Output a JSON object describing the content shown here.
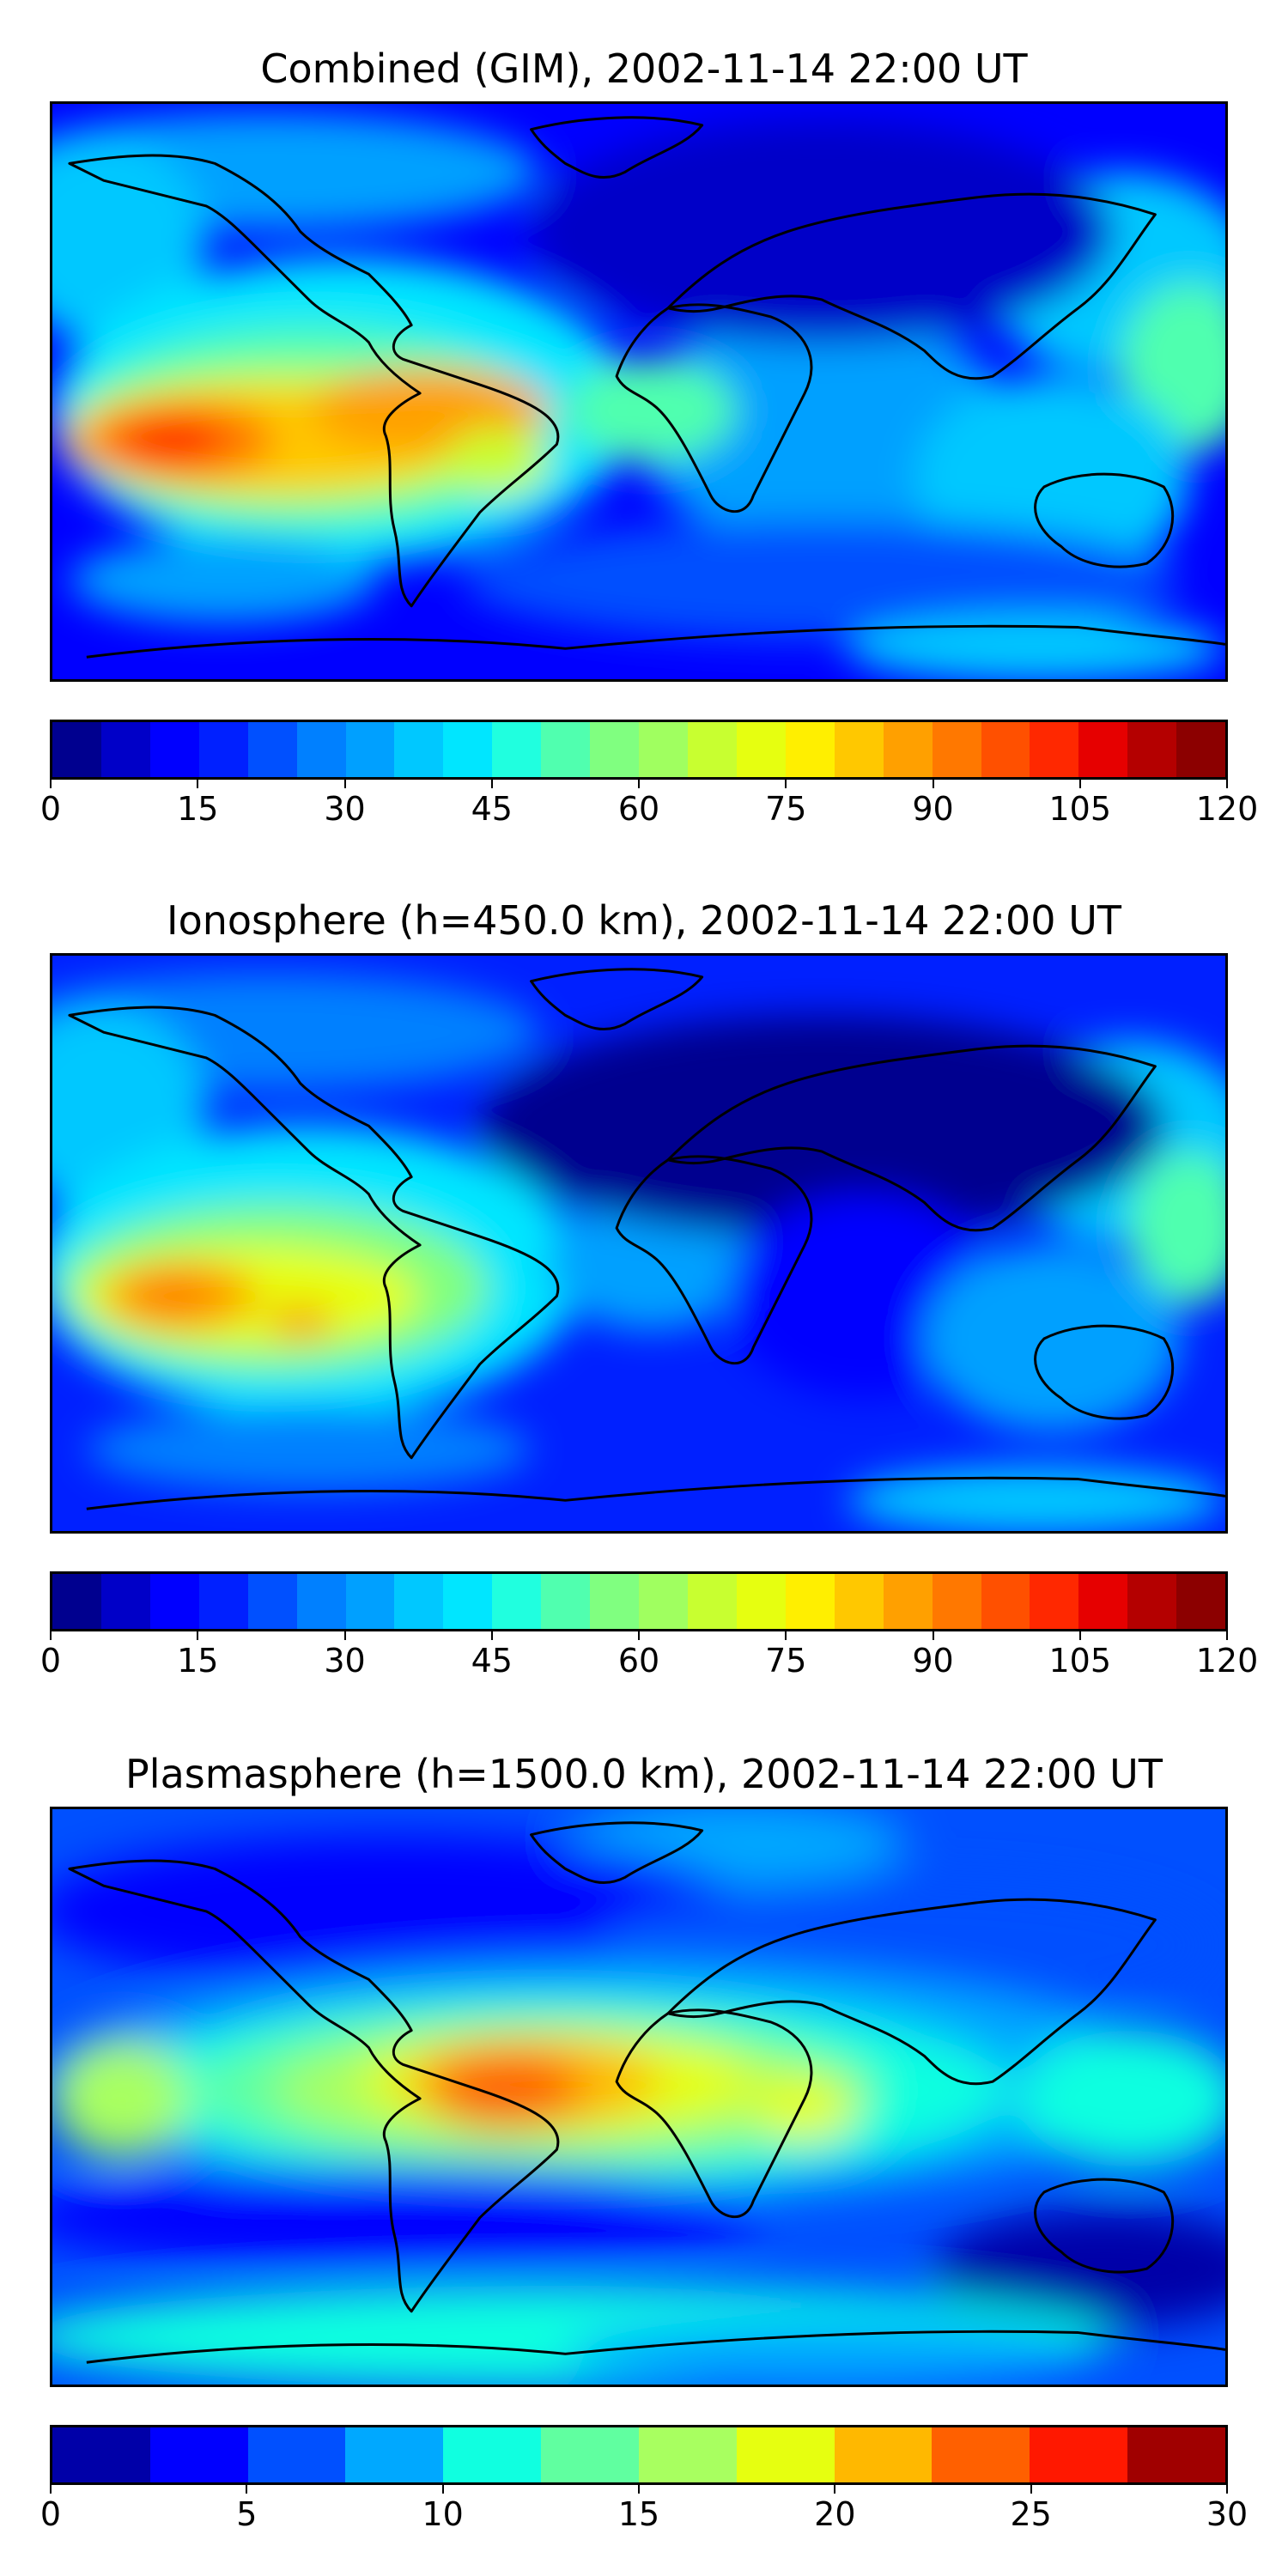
{
  "panels": [
    {
      "title": "Combined (GIM), 2002-11-14 22:00 UT",
      "colorbar": {
        "vmin": 0,
        "vmax": 120,
        "levels": 24,
        "ticks": [
          "0",
          "15",
          "30",
          "45",
          "60",
          "75",
          "90",
          "105",
          "120"
        ],
        "colors": [
          "#00008f",
          "#0000c8",
          "#0000ff",
          "#0020ff",
          "#0050ff",
          "#0080ff",
          "#00a0ff",
          "#00c8ff",
          "#00e6ff",
          "#20ffdf",
          "#50ffaf",
          "#80ff80",
          "#a0ff60",
          "#c8ff30",
          "#e6ff10",
          "#ffef00",
          "#ffc800",
          "#ffa000",
          "#ff7800",
          "#ff5000",
          "#ff2800",
          "#e60000",
          "#b40000",
          "#8c0000"
        ]
      }
    },
    {
      "title": "Ionosphere  (h=450.0 km), 2002-11-14 22:00 UT",
      "colorbar": {
        "vmin": 0,
        "vmax": 120,
        "levels": 24,
        "ticks": [
          "0",
          "15",
          "30",
          "45",
          "60",
          "75",
          "90",
          "105",
          "120"
        ],
        "colors": [
          "#00008f",
          "#0000c8",
          "#0000ff",
          "#0020ff",
          "#0050ff",
          "#0080ff",
          "#00a0ff",
          "#00c8ff",
          "#00e6ff",
          "#20ffdf",
          "#50ffaf",
          "#80ff80",
          "#a0ff60",
          "#c8ff30",
          "#e6ff10",
          "#ffef00",
          "#ffc800",
          "#ffa000",
          "#ff7800",
          "#ff5000",
          "#ff2800",
          "#e60000",
          "#b40000",
          "#8c0000"
        ]
      }
    },
    {
      "title": "Plasmasphere (h=1500.0 km), 2002-11-14 22:00 UT",
      "colorbar": {
        "vmin": 0,
        "vmax": 30,
        "levels": 12,
        "ticks": [
          "0",
          "5",
          "10",
          "15",
          "20",
          "25",
          "30"
        ],
        "colors": [
          "#0000a8",
          "#0000ff",
          "#0050ff",
          "#00a8ff",
          "#10ffe0",
          "#60ffa0",
          "#a8ff60",
          "#e6ff10",
          "#ffb800",
          "#ff6000",
          "#ff1800",
          "#a00000"
        ]
      }
    }
  ]
}
